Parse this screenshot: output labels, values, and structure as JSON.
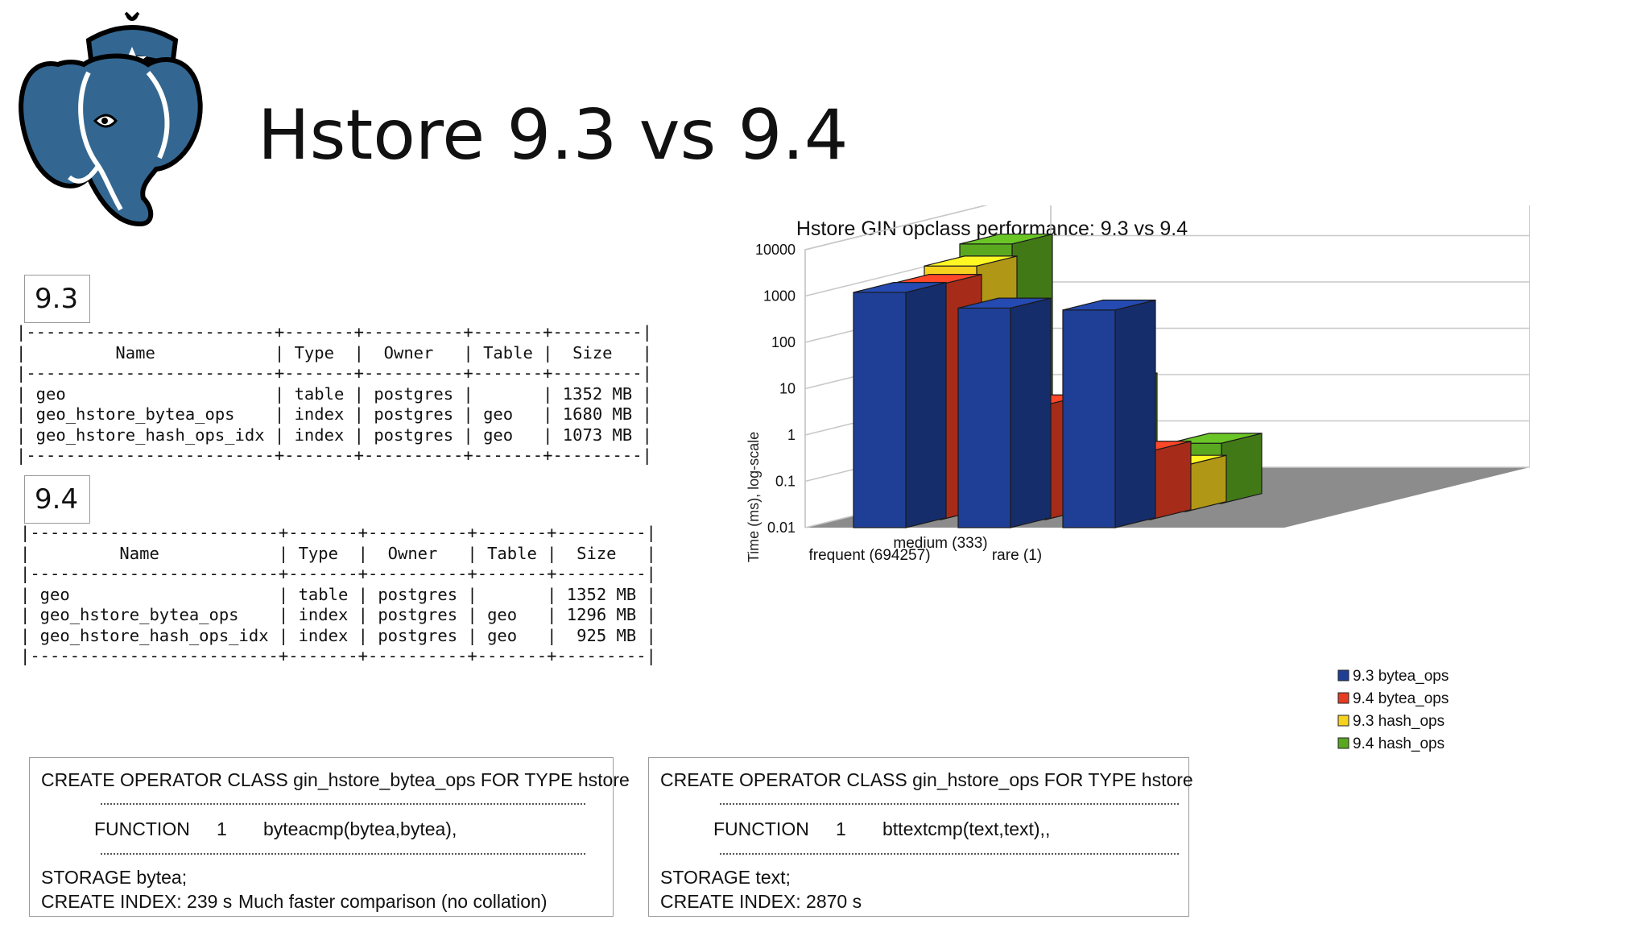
{
  "slide": {
    "title": "Hstore 9.3 vs 9.4"
  },
  "logo": {
    "icon": "postgresql-elephant-logo",
    "colors": {
      "body": "#336791",
      "outline": "#000000",
      "accent": "#ffffff"
    }
  },
  "v93": {
    "label": "9.3",
    "table_text": "|-------------------------+-------+----------+-------+---------|\n|         Name            | Type  |  Owner   | Table |  Size   |\n|-------------------------+-------+----------+-------+---------|\n| geo                     | table | postgres |       | 1352 MB |\n| geo_hstore_bytea_ops    | index | postgres | geo   | 1680 MB |\n| geo_hstore_hash_ops_idx | index | postgres | geo   | 1073 MB |\n|-------------------------+-------+----------+-------+---------|"
  },
  "v94": {
    "label": "9.4",
    "table_text": "|-------------------------+-------+----------+-------+---------|\n|         Name            | Type  |  Owner   | Table |  Size   |\n|-------------------------+-------+----------+-------+---------|\n| geo                     | table | postgres |       | 1352 MB |\n| geo_hstore_bytea_ops    | index | postgres | geo   | 1296 MB |\n| geo_hstore_hash_ops_idx | index | postgres | geo   |  925 MB |\n|-------------------------+-------+----------+-------+---------|"
  },
  "sql_left": {
    "line1": "CREATE OPERATOR CLASS gin_hstore_bytea_ops FOR TYPE hstore",
    "func_keyword": "FUNCTION",
    "func_num": "1",
    "func_name": "byteacmp(bytea,bytea),",
    "storage": "STORAGE bytea;",
    "create_index": "CREATE INDEX: 239 s",
    "note": "Much faster comparison (no collation)"
  },
  "sql_right": {
    "line1": "CREATE OPERATOR CLASS gin_hstore_ops FOR TYPE hstore",
    "func_keyword": "FUNCTION",
    "func_num": "1",
    "func_name": "bttextcmp(text,text),,",
    "storage": "STORAGE text;",
    "create_index": "CREATE INDEX: 2870 s"
  },
  "chart_data": {
    "type": "bar",
    "title": "Hstore GIN opclass performance: 9.3 vs 9.4",
    "ylabel": "Time (ms), log-scale",
    "xlabel": "",
    "yscale": "log",
    "ylim": [
      0.01,
      10000
    ],
    "yticks": [
      "0.01",
      "0.1",
      "1",
      "10",
      "100",
      "1000",
      "10000"
    ],
    "categories": [
      "frequent (694257)",
      "medium (333)",
      "rare (1)"
    ],
    "series": [
      {
        "name": "9.3 bytea_ops",
        "color": "#1f3f96",
        "values": [
          1200,
          550,
          500
        ]
      },
      {
        "name": "9.4 bytea_ops",
        "color": "#e63c23",
        "values": [
          1200,
          3,
          0.3
        ]
      },
      {
        "name": "9.3 hash_ops",
        "color": "#f5d21e",
        "values": [
          2000,
          1.5,
          0.1
        ]
      },
      {
        "name": "9.4 hash_ops",
        "color": "#5aa820",
        "values": [
          4000,
          4,
          0.2
        ]
      }
    ],
    "legend_position": "bottom-right",
    "grid": true,
    "style": "3d"
  }
}
